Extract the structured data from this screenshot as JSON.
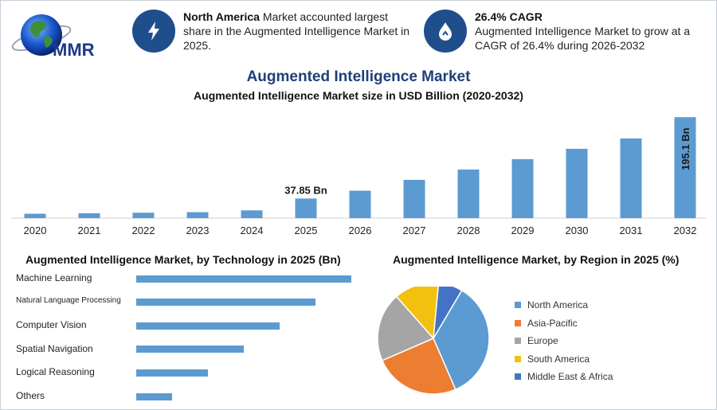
{
  "logo": {
    "text": "MMR"
  },
  "info_left": {
    "bold": "North America",
    "text": " Market accounted largest share in the Augmented Intelligence Market in 2025.",
    "icon": "lightning-icon"
  },
  "info_right": {
    "bold": "26.4% CAGR",
    "text": "Augmented Intelligence Market to grow at a CAGR of 26.4% during 2026-2032",
    "icon": "growth-drop-icon"
  },
  "colors": {
    "bar": "#5b9bd1",
    "navy": "#1f4e8c",
    "title": "#1f3f7a"
  },
  "chart_data": [
    {
      "type": "bar",
      "title": "Augmented Intelligence Market",
      "subtitle": "Augmented Intelligence Market size in USD Billion (2020-2032)",
      "categories": [
        "2020",
        "2021",
        "2022",
        "2023",
        "2024",
        "2025",
        "2026",
        "2027",
        "2028",
        "2029",
        "2030",
        "2031",
        "2032"
      ],
      "values": [
        8.5,
        9.5,
        10.5,
        11.5,
        15,
        37.85,
        53,
        74,
        94,
        114,
        134,
        154,
        195.1
      ],
      "annotations": [
        {
          "index": 5,
          "label": "37.85 Bn"
        },
        {
          "index": 12,
          "label": "195.1 Bn"
        }
      ],
      "ylim": [
        0,
        200
      ]
    },
    {
      "type": "bar",
      "orientation": "horizontal",
      "title": "Augmented Intelligence Market, by Technology in 2025 (Bn)",
      "categories": [
        "Machine Learning",
        "Natural Language Processing",
        "Computer Vision",
        "Spatial Navigation",
        "Logical Reasoning",
        "Others"
      ],
      "values": [
        12,
        10,
        8,
        6,
        4,
        2
      ],
      "xlim": [
        0,
        12
      ]
    },
    {
      "type": "pie",
      "title": "Augmented Intelligence Market, by Region in 2025 (%)",
      "labels": [
        "North America",
        "Asia-Pacific",
        "Europe",
        "South America",
        "Middle East & Africa"
      ],
      "values": [
        35,
        25,
        20,
        13,
        7
      ],
      "colors": [
        "#5b9bd1",
        "#ed7d31",
        "#a5a5a5",
        "#f2c10f",
        "#4472c4"
      ]
    }
  ]
}
